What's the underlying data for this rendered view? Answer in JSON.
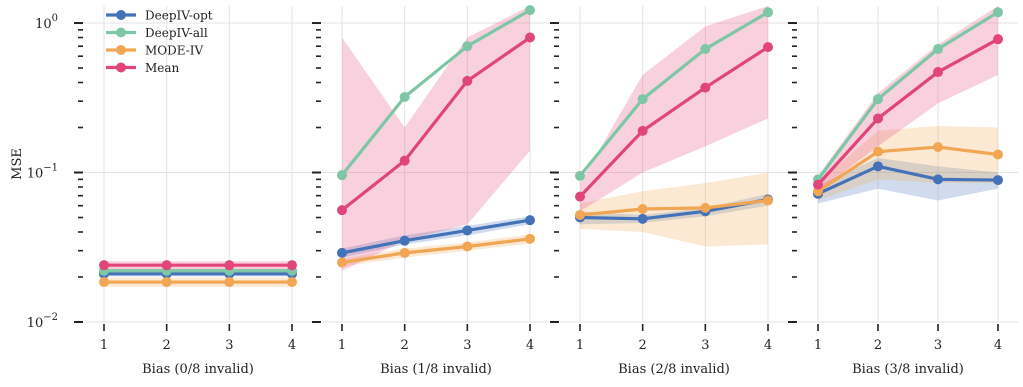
{
  "chart_data": {
    "type": "line",
    "ylabel": "MSE",
    "yscale": "log",
    "ylim": [
      0.01,
      1.3
    ],
    "ytick_labels": [
      {
        "base": "10",
        "exp": "0"
      },
      {
        "base": "10",
        "exp": "−1"
      },
      {
        "base": "10",
        "exp": "−2"
      }
    ],
    "ytick_values": [
      1,
      0.1,
      0.01
    ],
    "x": [
      1,
      2,
      3,
      4
    ],
    "xtick_labels": [
      "1",
      "2",
      "3",
      "4"
    ],
    "grid": true,
    "legend_position": "top-left",
    "series_styles": [
      {
        "name": "DeepIV-opt",
        "color": "#4472b8"
      },
      {
        "name": "DeepIV-all",
        "color": "#7dc6a6"
      },
      {
        "name": "MODE-IV",
        "color": "#f0a653"
      },
      {
        "name": "Mean",
        "color": "#e2457a"
      }
    ],
    "panels": [
      {
        "xlabel": "Bias (0/8 invalid)",
        "series": [
          {
            "name": "DeepIV-opt",
            "values": [
              0.021,
              0.021,
              0.021,
              0.021
            ],
            "lower": [
              0.0202,
              0.0202,
              0.0202,
              0.0202
            ],
            "upper": [
              0.0218,
              0.0218,
              0.0218,
              0.0218
            ]
          },
          {
            "name": "DeepIV-all",
            "values": [
              0.022,
              0.022,
              0.022,
              0.022
            ],
            "lower": [
              0.0212,
              0.0212,
              0.0212,
              0.0212
            ],
            "upper": [
              0.0228,
              0.0228,
              0.0228,
              0.0228
            ]
          },
          {
            "name": "MODE-IV",
            "values": [
              0.0185,
              0.0185,
              0.0185,
              0.0185
            ],
            "lower": [
              0.0172,
              0.0172,
              0.0172,
              0.0172
            ],
            "upper": [
              0.0198,
              0.0198,
              0.0198,
              0.0198
            ]
          },
          {
            "name": "Mean",
            "values": [
              0.024,
              0.024,
              0.024,
              0.024
            ],
            "lower": [
              0.0215,
              0.0215,
              0.0215,
              0.0215
            ],
            "upper": [
              0.0255,
              0.0255,
              0.0255,
              0.0255
            ]
          }
        ]
      },
      {
        "xlabel": "Bias (1/8 invalid)",
        "series": [
          {
            "name": "DeepIV-opt",
            "values": [
              0.029,
              0.035,
              0.041,
              0.048
            ],
            "lower": [
              0.027,
              0.033,
              0.038,
              0.045
            ],
            "upper": [
              0.031,
              0.038,
              0.044,
              0.051
            ]
          },
          {
            "name": "DeepIV-all",
            "values": [
              0.096,
              0.32,
              0.7,
              1.22
            ],
            "lower": [
              0.096,
              0.32,
              0.7,
              1.22
            ],
            "upper": [
              0.096,
              0.32,
              0.7,
              1.22
            ]
          },
          {
            "name": "MODE-IV",
            "values": [
              0.025,
              0.029,
              0.032,
              0.036
            ],
            "lower": [
              0.0235,
              0.027,
              0.03,
              0.0335
            ],
            "upper": [
              0.0265,
              0.031,
              0.034,
              0.0385
            ]
          },
          {
            "name": "Mean",
            "values": [
              0.056,
              0.12,
              0.41,
              0.8
            ],
            "lower": [
              0.022,
              0.035,
              0.045,
              0.14
            ],
            "upper": [
              0.8,
              0.2,
              0.8,
              1.3
            ]
          }
        ]
      },
      {
        "xlabel": "Bias (2/8 invalid)",
        "series": [
          {
            "name": "DeepIV-opt",
            "values": [
              0.05,
              0.049,
              0.055,
              0.066
            ],
            "lower": [
              0.045,
              0.046,
              0.051,
              0.06
            ],
            "upper": [
              0.055,
              0.052,
              0.058,
              0.072
            ]
          },
          {
            "name": "DeepIV-all",
            "values": [
              0.095,
              0.31,
              0.67,
              1.18
            ],
            "lower": [
              0.095,
              0.31,
              0.67,
              1.18
            ],
            "upper": [
              0.095,
              0.31,
              0.67,
              1.18
            ]
          },
          {
            "name": "MODE-IV",
            "values": [
              0.052,
              0.057,
              0.058,
              0.065
            ],
            "lower": [
              0.042,
              0.04,
              0.032,
              0.033
            ],
            "upper": [
              0.062,
              0.075,
              0.085,
              0.1
            ]
          },
          {
            "name": "Mean",
            "values": [
              0.069,
              0.19,
              0.37,
              0.69
            ],
            "lower": [
              0.055,
              0.1,
              0.15,
              0.23
            ],
            "upper": [
              0.085,
              0.45,
              0.95,
              1.3
            ]
          }
        ]
      },
      {
        "xlabel": "Bias (3/8 invalid)",
        "series": [
          {
            "name": "DeepIV-opt",
            "values": [
              0.072,
              0.11,
              0.09,
              0.089
            ],
            "lower": [
              0.062,
              0.078,
              0.065,
              0.078
            ],
            "upper": [
              0.082,
              0.125,
              0.11,
              0.1
            ]
          },
          {
            "name": "DeepIV-all",
            "values": [
              0.09,
              0.31,
              0.67,
              1.18
            ],
            "lower": [
              0.09,
              0.31,
              0.67,
              1.18
            ],
            "upper": [
              0.09,
              0.31,
              0.67,
              1.18
            ]
          },
          {
            "name": "MODE-IV",
            "values": [
              0.075,
              0.138,
              0.148,
              0.132
            ],
            "lower": [
              0.065,
              0.09,
              0.085,
              0.085
            ],
            "upper": [
              0.085,
              0.19,
              0.205,
              0.2
            ]
          },
          {
            "name": "Mean",
            "values": [
              0.083,
              0.23,
              0.47,
              0.78
            ],
            "lower": [
              0.075,
              0.15,
              0.29,
              0.45
            ],
            "upper": [
              0.095,
              0.34,
              0.72,
              1.3
            ]
          }
        ]
      }
    ],
    "legend": [
      "DeepIV-opt",
      "DeepIV-all",
      "MODE-IV",
      "Mean"
    ]
  }
}
